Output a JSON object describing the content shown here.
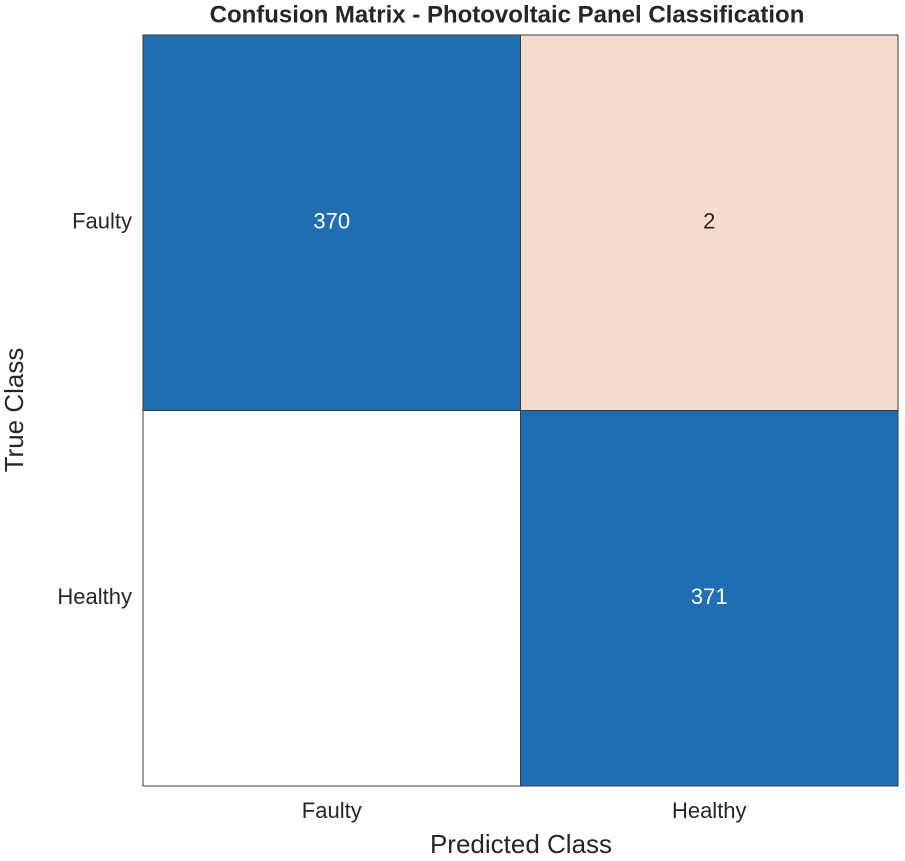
{
  "chart_data": {
    "type": "confusion-matrix",
    "title": "Confusion Matrix - Photovoltaic Panel Classification",
    "xlabel": "Predicted Class",
    "ylabel": "True Class",
    "x_categories": [
      "Faulty",
      "Healthy"
    ],
    "y_categories": [
      "Faulty",
      "Healthy"
    ],
    "values": [
      [
        370,
        2
      ],
      [
        0,
        371
      ]
    ],
    "diagonal_color": "#1f6eb4",
    "off_diagonal_color": "#f5dccd",
    "zero_color": "#ffffff"
  }
}
